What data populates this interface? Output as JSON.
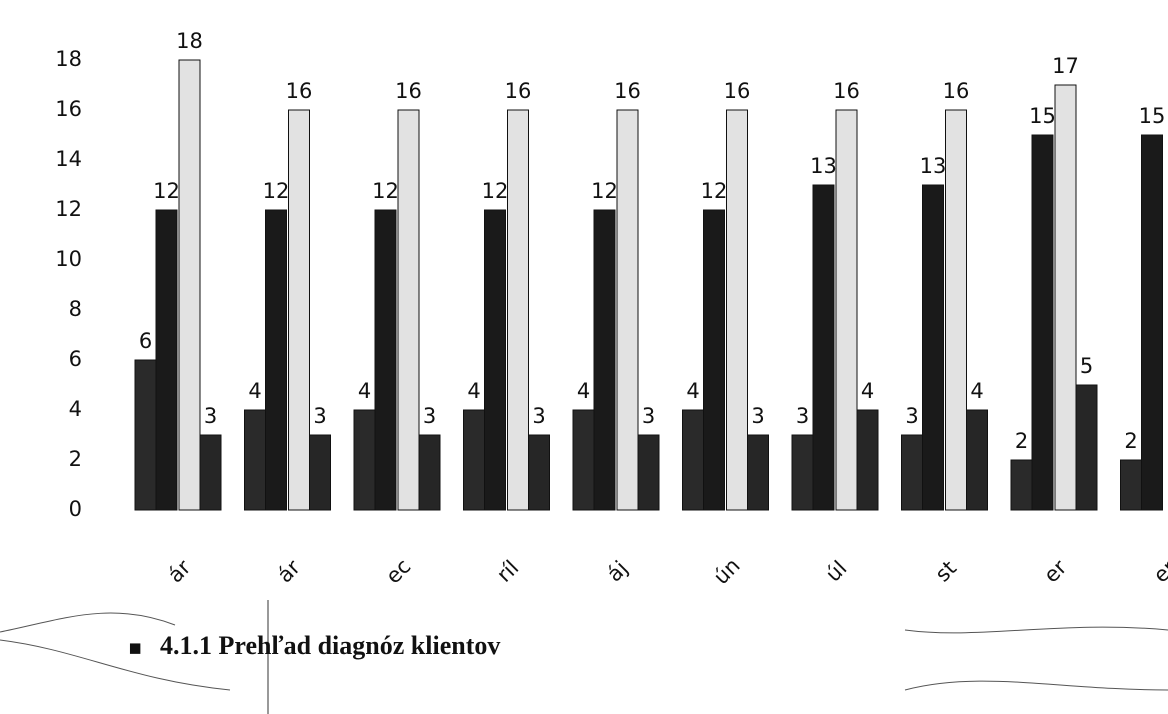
{
  "chart_data": {
    "type": "bar",
    "categories": [
      "ár",
      "ár",
      "ec",
      "ríl",
      "áj",
      "ún",
      "úl",
      "st",
      "er",
      "er"
    ],
    "series": [
      {
        "color": "#2a2a2a",
        "values": [
          6,
          4,
          4,
          4,
          4,
          4,
          3,
          3,
          2,
          2
        ]
      },
      {
        "color": "#1a1a1a",
        "values": [
          12,
          12,
          12,
          12,
          12,
          12,
          13,
          13,
          15,
          15
        ]
      },
      {
        "color": "#e2e2e2",
        "values": [
          18,
          16,
          16,
          16,
          16,
          16,
          16,
          16,
          17,
          null
        ]
      },
      {
        "color": "#262626",
        "values": [
          3,
          3,
          3,
          3,
          3,
          3,
          4,
          4,
          5,
          null
        ]
      }
    ],
    "ylim": [
      0,
      18
    ],
    "yticks": [
      0,
      2,
      4,
      6,
      8,
      10,
      12,
      14,
      16,
      18
    ],
    "grid": false
  },
  "heading": {
    "bullet": "▪",
    "text": "4.1.1 Prehľad diagnóz klientov"
  }
}
